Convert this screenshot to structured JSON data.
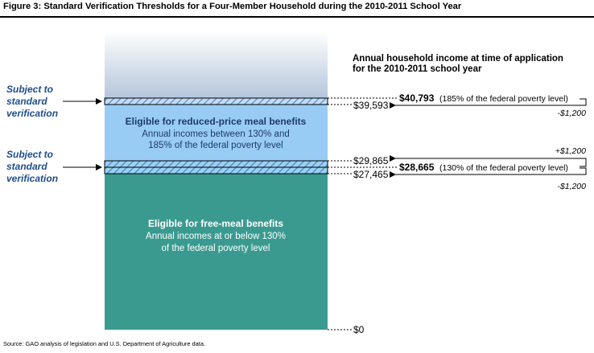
{
  "figure": {
    "title": "Figure 3: Standard Verification Thresholds for a Four-Member Household during the 2010-2011 School Year",
    "source": "Source: GAO analysis of legislation and U.S. Department of Agriculture data."
  },
  "header": {
    "line1": "Annual household income at time of application",
    "line2": "for the 2010-2011 school year"
  },
  "subject_label": {
    "line1": "Subject to",
    "line2": "standard",
    "line3": "verification"
  },
  "regions": {
    "reduced": {
      "title": "Eligible for reduced-price meal benefits",
      "line1": "Annual incomes between 130% and",
      "line2": "185% of the federal poverty level"
    },
    "free": {
      "title": "Eligible for free-meal benefits",
      "line1": "Annual incomes at or below 130%",
      "line2": "of the federal poverty level"
    }
  },
  "thresholds": {
    "upper": {
      "value": "$40,793",
      "note": "(185% of the federal poverty level)"
    },
    "lower": {
      "value": "$28,665",
      "note": "(130% of the federal poverty level)"
    }
  },
  "levels": {
    "l39593": "$39,593",
    "l29865": "$29,865",
    "l27465": "$27,465",
    "l0": "$0"
  },
  "adjustments": {
    "upper_minus": "-$1,200",
    "lower_plus": "+$1,200",
    "lower_minus": "-$1,200"
  },
  "colors": {
    "reduced_band": "#99ccf5",
    "free_band": "#3a9a90",
    "hatch": "#4a8fd8",
    "label_blue": "#1f4e8c"
  }
}
